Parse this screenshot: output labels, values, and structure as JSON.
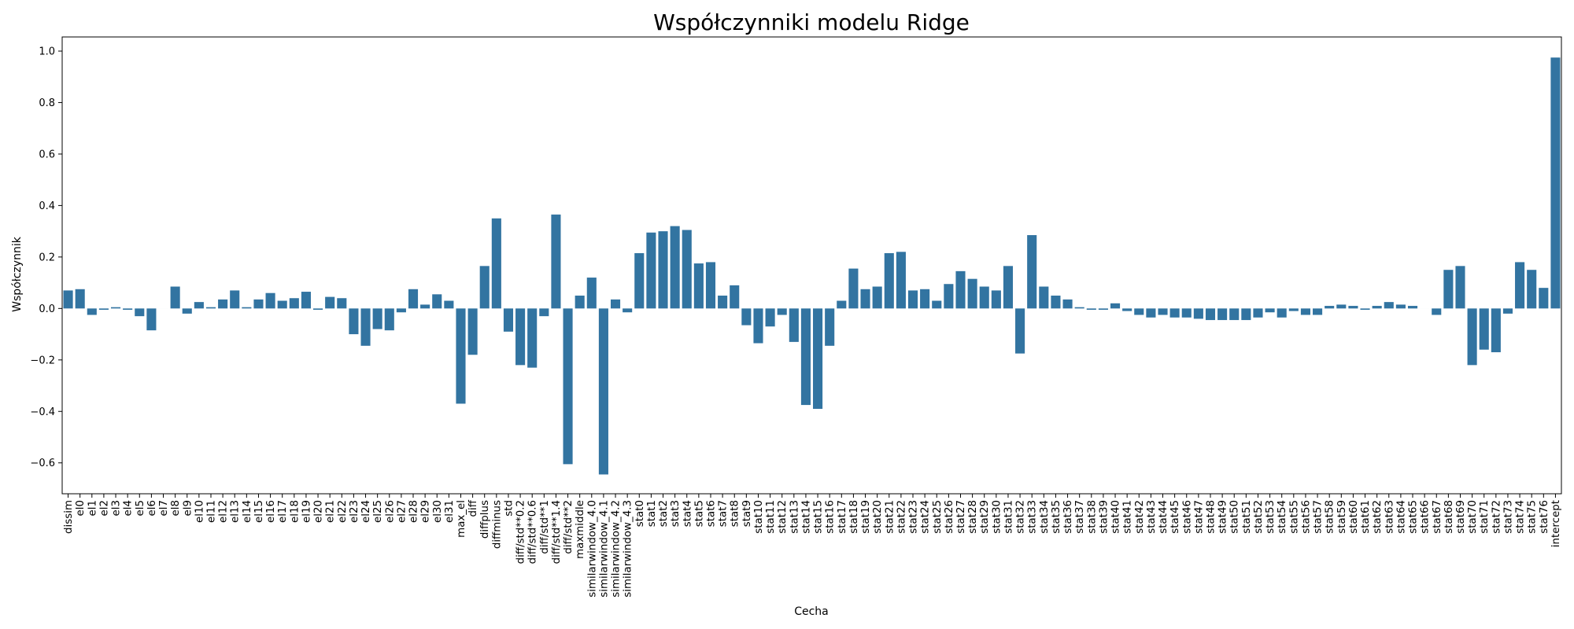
{
  "chart_data": {
    "type": "bar",
    "title": "Współczynniki modelu Ridge",
    "xlabel": "Cecha",
    "ylabel": "Współczynnik",
    "ylim": [
      -0.72,
      1.055
    ],
    "yticks": [
      -0.6,
      -0.4,
      -0.2,
      0.0,
      0.2,
      0.4,
      0.6,
      0.8,
      1.0
    ],
    "ytick_labels": [
      "−0.6",
      "−0.4",
      "−0.2",
      "0.0",
      "0.2",
      "0.4",
      "0.6",
      "0.8",
      "1.0"
    ],
    "grid": false,
    "bar_color": "#3274a1",
    "categories": [
      "dissim",
      "el0",
      "el1",
      "el2",
      "el3",
      "el4",
      "el5",
      "el6",
      "el7",
      "el8",
      "el9",
      "el10",
      "el11",
      "el12",
      "el13",
      "el14",
      "el15",
      "el16",
      "el17",
      "el18",
      "el19",
      "el20",
      "el21",
      "el22",
      "el23",
      "el24",
      "el25",
      "el26",
      "el27",
      "el28",
      "el29",
      "el30",
      "el31",
      "max_el",
      "diff",
      "diffplus",
      "diffminus",
      "std",
      "diff/std**0.2",
      "diff/std**0.6",
      "diff/std**1",
      "diff/std**1.4",
      "diff/std**2",
      "maxmiddle",
      "similarwindow_4.0",
      "similarwindow_4.1",
      "similarwindow_4.2",
      "similarwindow_4.3",
      "stat0",
      "stat1",
      "stat2",
      "stat3",
      "stat4",
      "stat5",
      "stat6",
      "stat7",
      "stat8",
      "stat9",
      "stat10",
      "stat11",
      "stat12",
      "stat13",
      "stat14",
      "stat15",
      "stat16",
      "stat17",
      "stat18",
      "stat19",
      "stat20",
      "stat21",
      "stat22",
      "stat23",
      "stat24",
      "stat25",
      "stat26",
      "stat27",
      "stat28",
      "stat29",
      "stat30",
      "stat31",
      "stat32",
      "stat33",
      "stat34",
      "stat35",
      "stat36",
      "stat37",
      "stat38",
      "stat39",
      "stat40",
      "stat41",
      "stat42",
      "stat43",
      "stat44",
      "stat45",
      "stat46",
      "stat47",
      "stat48",
      "stat49",
      "stat50",
      "stat51",
      "stat52",
      "stat53",
      "stat54",
      "stat55",
      "stat56",
      "stat57",
      "stat58",
      "stat59",
      "stat60",
      "stat61",
      "stat62",
      "stat63",
      "stat64",
      "stat65",
      "stat66",
      "stat67",
      "stat68",
      "stat69",
      "stat70",
      "stat71",
      "stat72",
      "stat73",
      "stat74",
      "stat75",
      "stat76",
      "intercept"
    ],
    "values": [
      0.07,
      0.075,
      -0.025,
      -0.005,
      0.005,
      -0.005,
      -0.03,
      -0.085,
      0.0,
      0.085,
      -0.02,
      0.025,
      0.005,
      0.035,
      0.07,
      0.005,
      0.035,
      0.06,
      0.03,
      0.04,
      0.065,
      -0.005,
      0.045,
      0.04,
      -0.1,
      -0.145,
      -0.08,
      -0.085,
      -0.015,
      0.075,
      0.015,
      0.055,
      0.03,
      -0.37,
      -0.18,
      0.165,
      0.35,
      -0.09,
      -0.22,
      -0.23,
      -0.03,
      0.365,
      -0.605,
      0.05,
      0.12,
      -0.645,
      0.035,
      -0.015,
      0.215,
      0.295,
      0.3,
      0.32,
      0.305,
      0.175,
      0.18,
      0.05,
      0.09,
      -0.065,
      -0.135,
      -0.07,
      -0.025,
      -0.13,
      -0.375,
      -0.39,
      -0.145,
      0.03,
      0.155,
      0.075,
      0.085,
      0.215,
      0.22,
      0.07,
      0.075,
      0.03,
      0.095,
      0.145,
      0.115,
      0.085,
      0.07,
      0.165,
      -0.175,
      0.285,
      0.085,
      0.05,
      0.035,
      0.005,
      -0.005,
      -0.005,
      0.02,
      -0.01,
      -0.025,
      -0.035,
      -0.025,
      -0.035,
      -0.035,
      -0.04,
      -0.045,
      -0.045,
      -0.045,
      -0.045,
      -0.035,
      -0.015,
      -0.035,
      -0.01,
      -0.025,
      -0.025,
      0.01,
      0.015,
      0.01,
      -0.005,
      0.01,
      0.025,
      0.015,
      0.01,
      0.0,
      -0.025,
      0.15,
      0.165,
      -0.22,
      -0.16,
      -0.17,
      -0.02,
      0.18,
      0.15,
      0.08,
      0.975
    ]
  }
}
